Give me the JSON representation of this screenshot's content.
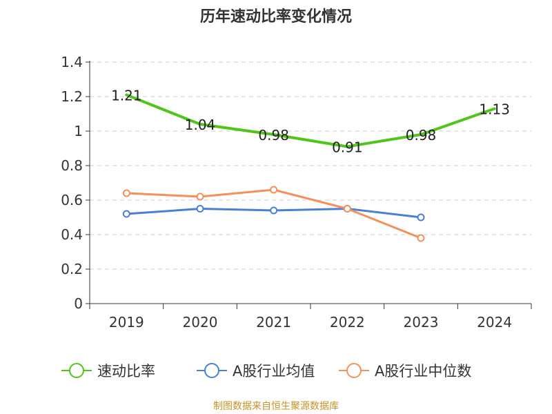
{
  "chart_data": {
    "type": "line",
    "title": "历年速动比率变化情况",
    "xlabel": "",
    "ylabel": "",
    "categories": [
      "2019",
      "2020",
      "2021",
      "2022",
      "2023",
      "2024"
    ],
    "ylim": [
      0,
      1.4
    ],
    "yticks": [
      "0",
      "0.2",
      "0.4",
      "0.6",
      "0.8",
      "1",
      "1.2",
      "1.4"
    ],
    "grid": true,
    "legend_position": "bottom",
    "series": [
      {
        "name": "速动比率",
        "color": "#52c41a",
        "values": [
          1.21,
          1.04,
          0.98,
          0.91,
          0.98,
          1.13
        ],
        "labels": [
          "1.21",
          "1.04",
          "0.98",
          "0.91",
          "0.98",
          "1.13"
        ],
        "show_labels": true,
        "show_markers": false
      },
      {
        "name": "A股行业均值",
        "color": "#4a7fd6",
        "values": [
          0.52,
          0.55,
          0.54,
          0.55,
          0.5,
          null
        ],
        "show_labels": false,
        "show_markers": true
      },
      {
        "name": "A股行业中位数",
        "color": "#f4905a",
        "values": [
          0.64,
          0.62,
          0.66,
          0.55,
          0.38,
          null
        ],
        "show_labels": false,
        "show_markers": true
      }
    ]
  },
  "source": "制图数据来自恒生聚源数据库"
}
